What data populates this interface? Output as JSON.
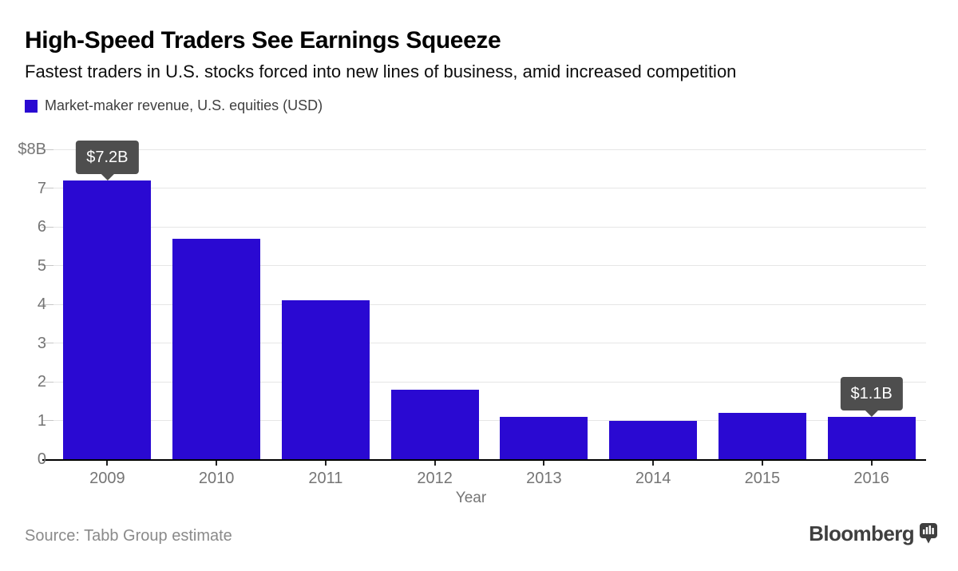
{
  "header": {
    "title": "High-Speed Traders See Earnings Squeeze",
    "subtitle": "Fastest traders in U.S. stocks forced into new lines of business, amid increased competition"
  },
  "legend": {
    "swatch_color": "#2A09D2",
    "label": "Market-maker revenue, U.S. equities (USD)"
  },
  "chart_data": {
    "type": "bar",
    "title": "High-Speed Traders See Earnings Squeeze",
    "subtitle": "Fastest traders in U.S. stocks forced into new lines of business, amid increased competition",
    "categories": [
      "2009",
      "2010",
      "2011",
      "2012",
      "2013",
      "2014",
      "2015",
      "2016"
    ],
    "series": [
      {
        "name": "Market-maker revenue, U.S. equities (USD)",
        "values": [
          7.2,
          5.7,
          4.1,
          1.8,
          1.1,
          1.0,
          1.2,
          1.1
        ]
      }
    ],
    "xlabel": "Year",
    "ylabel": "",
    "ylim": [
      0,
      8
    ],
    "yticks": [
      0,
      1,
      2,
      3,
      4,
      5,
      6,
      7,
      8
    ],
    "ytick_labels": [
      "0",
      "1",
      "2",
      "3",
      "4",
      "5",
      "6",
      "7",
      "$8B"
    ],
    "grid": true,
    "legend_position": "top-left",
    "bar_color": "#2A09D2",
    "annotations": [
      {
        "category": "2009",
        "value": 7.2,
        "label": "$7.2B"
      },
      {
        "category": "2016",
        "value": 1.1,
        "label": "$1.1B"
      }
    ]
  },
  "footer": {
    "source": "Source: Tabb Group estimate",
    "brand": "Bloomberg",
    "brand_icon": "bloomberg-chart-bubble-icon"
  },
  "colors": {
    "bar": "#2A09D2",
    "tooltip_bg": "#4E4E4E",
    "grid": "#E6E6E6",
    "axis": "#000000",
    "tick_label": "#757575",
    "legend_text": "#3F3F3F",
    "source_text": "#8A8A8A",
    "brand_text": "#3F3F3F"
  }
}
